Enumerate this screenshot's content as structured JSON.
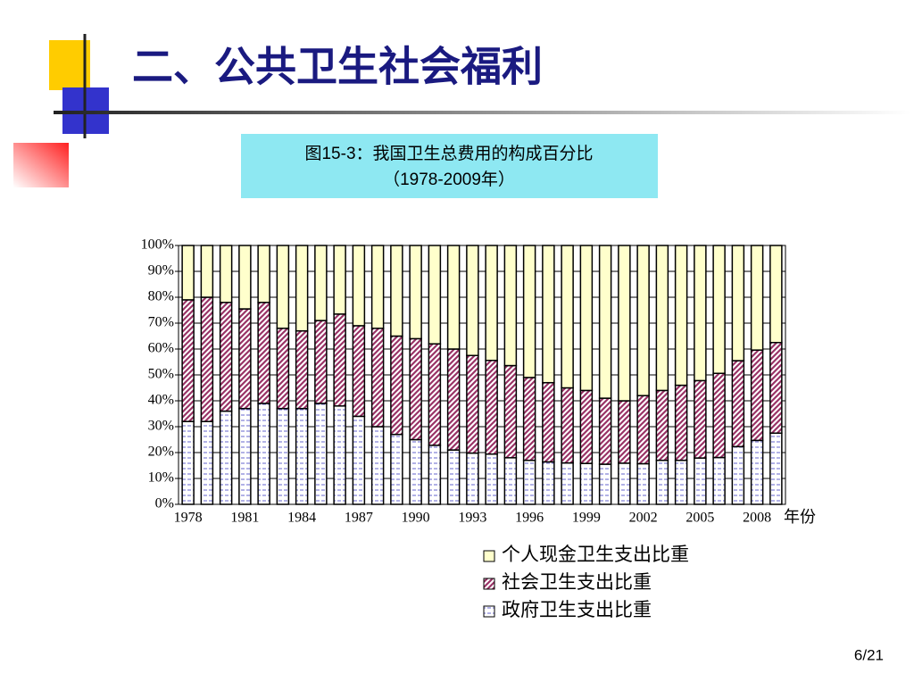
{
  "slide": {
    "heading": "二、公共卫生社会福利",
    "page": "6/21"
  },
  "chart_data": {
    "type": "stacked-bar",
    "title": "图15-3：我国卫生总费用的构成百分比",
    "subtitle": "（1978-2009年）",
    "x_label": "年份",
    "categories": [
      "1978",
      null,
      null,
      "1981",
      null,
      null,
      "1984",
      null,
      null,
      "1987",
      null,
      null,
      "1990",
      null,
      null,
      "1993",
      null,
      null,
      "1996",
      null,
      null,
      "1999",
      null,
      null,
      "2002",
      null,
      null,
      "2005",
      null,
      null,
      "2008",
      null
    ],
    "series": [
      {
        "name": "政府卫生支出比重",
        "color": "#6666cc",
        "values": [
          32,
          32,
          36,
          37,
          39,
          37,
          37,
          39,
          38,
          34,
          30,
          27,
          25,
          22.8,
          21,
          19.8,
          19.4,
          18,
          17,
          16.4,
          16,
          15.8,
          15.5,
          15.9,
          15.7,
          17,
          17,
          17.9,
          18.1,
          22.3,
          24.7,
          27.5
        ]
      },
      {
        "name": "社会卫生支出比重",
        "color": "#993366",
        "values": [
          47,
          48,
          42,
          38.5,
          39,
          31,
          30,
          32,
          35.5,
          35,
          38,
          38,
          39,
          39.2,
          39,
          37.7,
          36.2,
          35.6,
          32,
          30.6,
          29,
          28.2,
          25.5,
          24.1,
          26.3,
          27,
          29,
          29.9,
          32.5,
          33.2,
          34.9,
          35
        ]
      },
      {
        "name": "个人现金卫生支出比重",
        "color": "#ffffcc",
        "values": [
          21,
          20,
          22,
          24.5,
          22,
          32,
          33,
          29,
          26.5,
          31,
          32,
          35,
          36,
          38,
          40,
          42.5,
          44.4,
          46.4,
          51,
          53,
          55,
          56,
          59,
          60,
          58,
          56,
          54,
          52.2,
          49.4,
          44.5,
          40.4,
          37.5
        ]
      }
    ],
    "ylim": [
      0,
      100
    ],
    "yticks": [
      {
        "value": 0,
        "label": "0%"
      },
      {
        "value": 10,
        "label": "10%"
      },
      {
        "value": 20,
        "label": "20%"
      },
      {
        "value": 30,
        "label": "30%"
      },
      {
        "value": 40,
        "label": "40%"
      },
      {
        "value": 50,
        "label": "50%"
      },
      {
        "value": 60,
        "label": "60%"
      },
      {
        "value": 70,
        "label": "70%"
      },
      {
        "value": 80,
        "label": "80%"
      },
      {
        "value": 90,
        "label": "90%"
      },
      {
        "value": 100,
        "label": "100%"
      }
    ],
    "grid": true
  }
}
